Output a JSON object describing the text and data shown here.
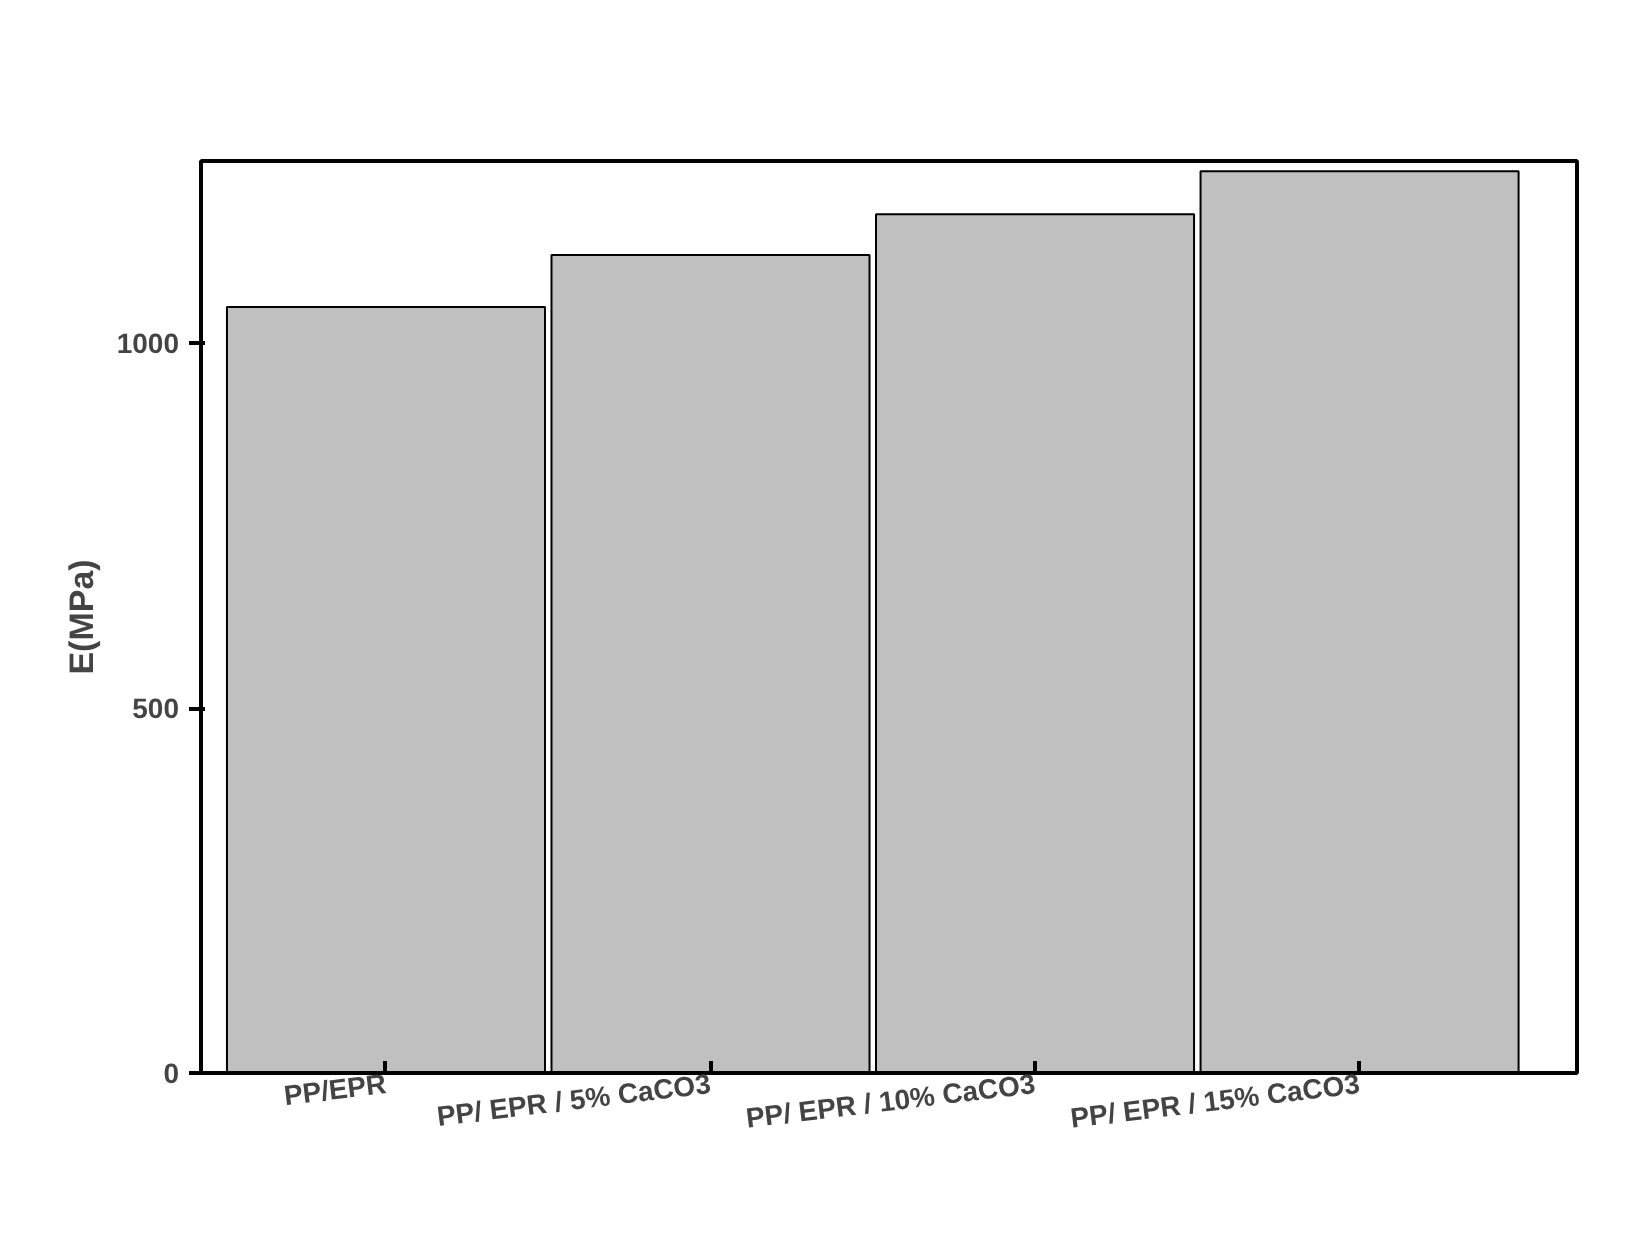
{
  "chart_data": {
    "type": "bar",
    "ylabel": "E(MPa)",
    "categories": [
      "PP/EPR",
      "PP/ EPR / 5% CaCO3",
      "PP/ EPR / 10% CaCO3",
      "PP/ EPR / 15% CaCO3"
    ],
    "values": [
      1050,
      1121,
      1177,
      1236
    ],
    "color": "#c0c0c0",
    "ylim": [
      0,
      1250
    ],
    "yticks": [
      0,
      500,
      1000
    ],
    "grid": false
  }
}
